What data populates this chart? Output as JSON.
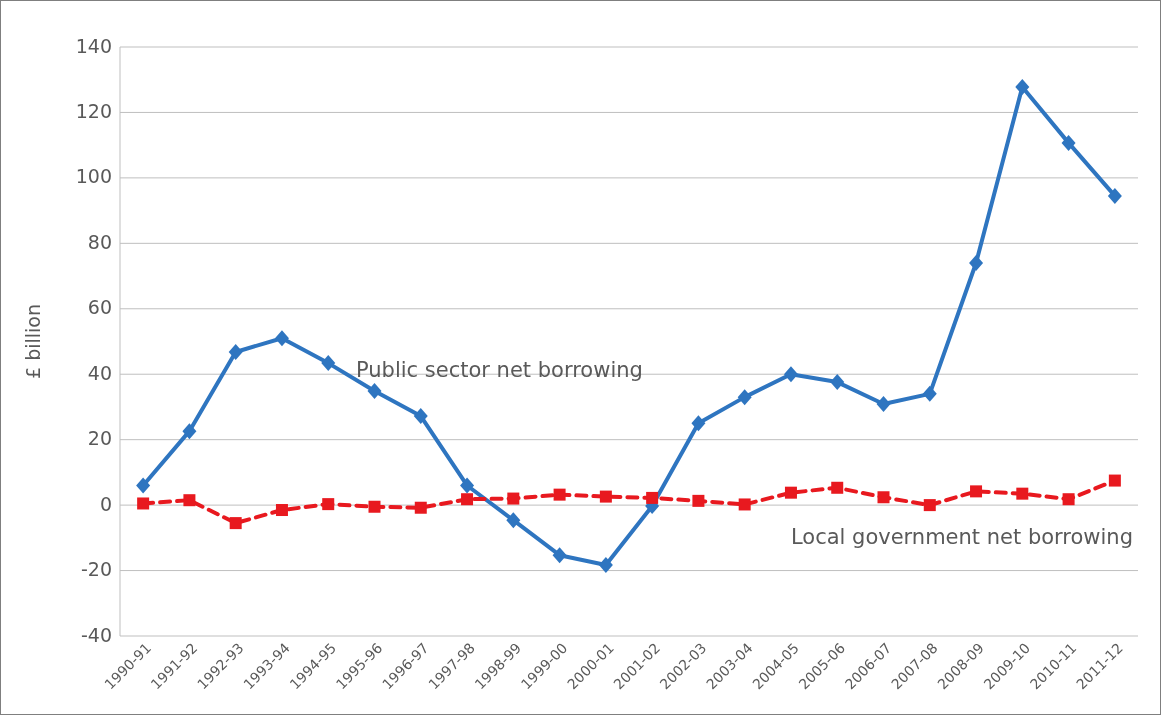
{
  "chart_data": {
    "type": "line",
    "ylabel": "£ billion",
    "categories": [
      "1990-91",
      "1991-92",
      "1992-93",
      "1993-94",
      "1994-95",
      "1995-96",
      "1996-97",
      "1997-98",
      "1998-99",
      "1999-00",
      "2000-01",
      "2001-02",
      "2002-03",
      "2003-04",
      "2004-05",
      "2005-06",
      "2006-07",
      "2007-08",
      "2008-09",
      "2009-10",
      "2010-11",
      "2011-12"
    ],
    "series": [
      {
        "name": "Public sector net borrowing",
        "color": "#2e75c0",
        "marker": "diamond",
        "line_style": "solid",
        "values": [
          6,
          22.6,
          46.8,
          51,
          43.4,
          34.9,
          27.2,
          6,
          -4.6,
          -15.3,
          -18.3,
          -0.3,
          25,
          33,
          40,
          37.6,
          30.9,
          34,
          74,
          127.8,
          110.7,
          94.5
        ]
      },
      {
        "name": "Local government net borrowing",
        "color": "#e8191f",
        "marker": "square",
        "line_style": "dashed",
        "values": [
          0.5,
          1.5,
          -5.5,
          -1.5,
          0.3,
          -0.5,
          -0.8,
          1.8,
          2,
          3.2,
          2.6,
          2.2,
          1.3,
          0.2,
          3.8,
          5.3,
          2.4,
          0,
          4.2,
          3.5,
          1.8,
          7.5
        ]
      }
    ],
    "ylim": [
      -40,
      140
    ],
    "yticks": [
      -40,
      -20,
      0,
      20,
      40,
      60,
      80,
      100,
      120,
      140
    ],
    "grid": "y",
    "legend": false
  }
}
